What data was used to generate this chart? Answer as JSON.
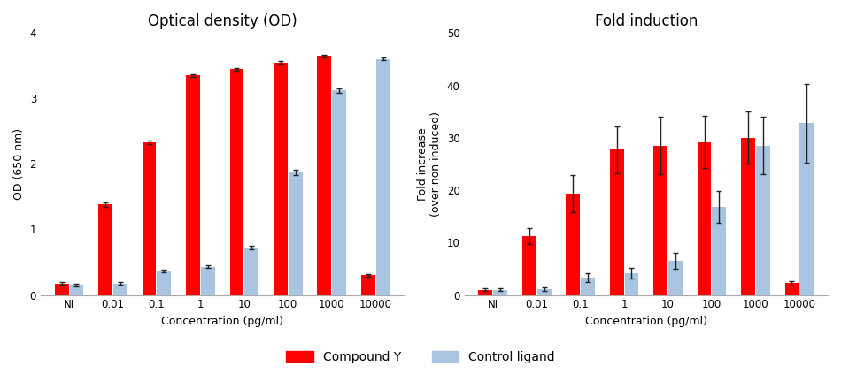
{
  "categories": [
    "NI",
    "0.01",
    "0.1",
    "1",
    "10",
    "100",
    "1000",
    "10000"
  ],
  "od_compound_y": [
    0.17,
    1.38,
    2.33,
    3.35,
    3.45,
    3.55,
    3.65,
    0.3
  ],
  "od_control_ligand": [
    0.15,
    0.17,
    0.37,
    0.43,
    0.72,
    1.87,
    3.12,
    3.6
  ],
  "od_err_compound_y": [
    0.02,
    0.03,
    0.03,
    0.02,
    0.02,
    0.02,
    0.02,
    0.02
  ],
  "od_err_control_ligand": [
    0.02,
    0.02,
    0.02,
    0.02,
    0.03,
    0.04,
    0.03,
    0.02
  ],
  "fi_compound_y": [
    1.0,
    11.2,
    19.3,
    27.7,
    28.5,
    29.2,
    30.0,
    2.2
  ],
  "fi_control_ligand": [
    1.0,
    1.1,
    3.3,
    4.1,
    6.5,
    16.8,
    28.5,
    32.8
  ],
  "fi_err_compound_y": [
    0.3,
    1.5,
    3.5,
    4.5,
    5.5,
    5.0,
    5.0,
    0.5
  ],
  "fi_err_control_ligand": [
    0.2,
    0.3,
    0.8,
    1.0,
    1.5,
    3.0,
    5.5,
    7.5
  ],
  "color_compound_y": "#ff0000",
  "color_control_ligand": "#a8c4e0",
  "title_left": "Optical density (OD)",
  "title_right": "Fold induction",
  "ylabel_left": "OD (650 nm)",
  "ylabel_right": "Fold increase\n(over non induced)",
  "xlabel": "Concentration (pg/ml)",
  "ylim_left": [
    0,
    4
  ],
  "ylim_right": [
    0,
    50
  ],
  "yticks_left": [
    0,
    1,
    2,
    3,
    4
  ],
  "yticks_right": [
    0,
    10,
    20,
    30,
    40,
    50
  ],
  "legend_label_compound_y": "Compound Y",
  "legend_label_control_ligand": "Control ligand",
  "bar_width": 0.32,
  "bar_gap": 0.02,
  "title_fontsize": 12,
  "label_fontsize": 9,
  "tick_fontsize": 8.5,
  "legend_fontsize": 10,
  "background_color": "#ffffff",
  "ecolor": "#222222"
}
